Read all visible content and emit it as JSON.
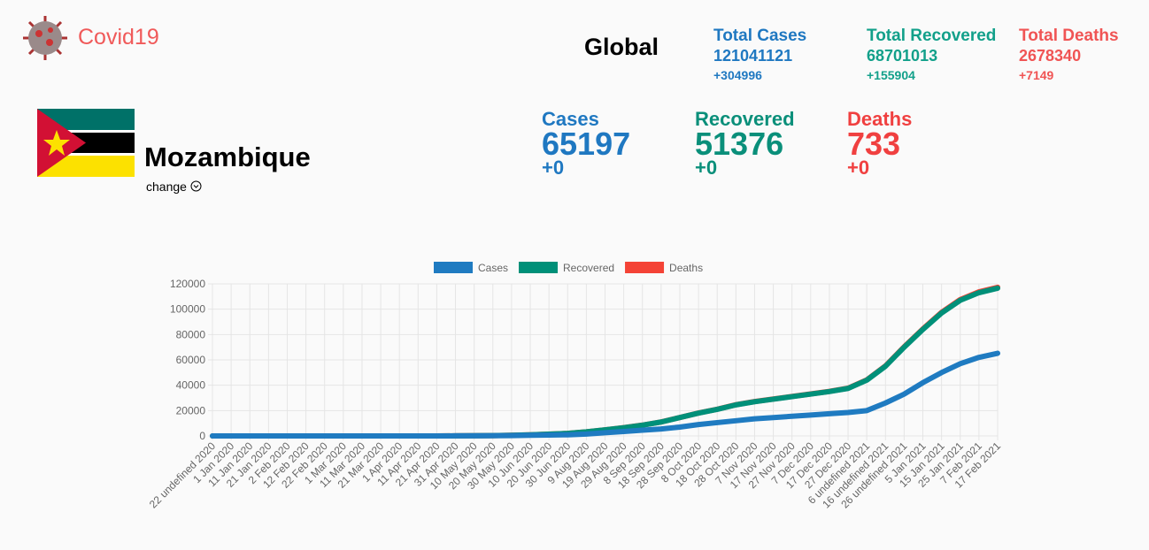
{
  "header": {
    "title": "Covid19"
  },
  "global": {
    "title": "Global",
    "stats": [
      {
        "label": "Total Cases",
        "value": "121041121",
        "delta": "+304996",
        "color": "#1f78c1"
      },
      {
        "label": "Total Recovered",
        "value": "68701013",
        "delta": "+155904",
        "color": "#12a08a"
      },
      {
        "label": "Total Deaths",
        "value": "2678340",
        "delta": "+7149",
        "color": "#f05454"
      }
    ]
  },
  "country": {
    "name": "Mozambique",
    "change": "change",
    "stats": [
      {
        "label": "Cases",
        "value": "65197",
        "delta": "+0",
        "color": "#1f78c1"
      },
      {
        "label": "Recovered",
        "value": "51376",
        "delta": "+0",
        "color": "#0a8f7a"
      },
      {
        "label": "Deaths",
        "value": "733",
        "delta": "+0",
        "color": "#f04040"
      }
    ]
  },
  "chart_data": {
    "type": "line",
    "stacked": true,
    "categories": [
      "22 undefined 2020",
      "1 Jan 2020",
      "11 Jan 2020",
      "21 Jan 2020",
      "2 Feb 2020",
      "12 Feb 2020",
      "22 Feb 2020",
      "1 Mar 2020",
      "11 Mar 2020",
      "21 Mar 2020",
      "1 Apr 2020",
      "11 Apr 2020",
      "21 Apr 2020",
      "31 Apr 2020",
      "10 May 2020",
      "20 May 2020",
      "30 May 2020",
      "10 Jun 2020",
      "20 Jun 2020",
      "30 Jun 2020",
      "9 Aug 2020",
      "19 Aug 2020",
      "29 Aug 2020",
      "8 Sep 2020",
      "18 Sep 2020",
      "28 Sep 2020",
      "8 Oct 2020",
      "18 Oct 2020",
      "28 Oct 2020",
      "7 Nov 2020",
      "17 Nov 2020",
      "27 Nov 2020",
      "7 Dec 2020",
      "17 Dec 2020",
      "27 Dec 2020",
      "6 undefined 2021",
      "16 undefined 2021",
      "26 undefined 2021",
      "5 Jan 2021",
      "15 Jan 2021",
      "25 Jan 2021",
      "7 Feb 2021",
      "17 Feb 2021"
    ],
    "series": [
      {
        "name": "Cases",
        "color": "#1f7bc1",
        "values": [
          0,
          0,
          0,
          0,
          0,
          0,
          0,
          0,
          0,
          0,
          0,
          0,
          0,
          50,
          100,
          150,
          250,
          500,
          700,
          900,
          1500,
          2500,
          3500,
          4500,
          5500,
          7000,
          9000,
          10500,
          12000,
          13500,
          14500,
          15500,
          16500,
          17500,
          18500,
          20000,
          26000,
          33000,
          42000,
          50000,
          57000,
          62000,
          65197
        ]
      },
      {
        "name": "Recovered",
        "color": "#009079",
        "values": [
          0,
          0,
          0,
          0,
          0,
          0,
          0,
          0,
          0,
          0,
          0,
          0,
          0,
          10,
          50,
          150,
          250,
          400,
          700,
          1100,
          1700,
          2300,
          3000,
          4000,
          5500,
          7500,
          9000,
          10500,
          12500,
          13500,
          14500,
          15500,
          16500,
          17500,
          19000,
          24000,
          29000,
          37000,
          42000,
          47000,
          50000,
          51000,
          51376
        ]
      },
      {
        "name": "Deaths",
        "color": "#f44336",
        "values": [
          0,
          0,
          0,
          0,
          0,
          0,
          0,
          0,
          0,
          0,
          0,
          0,
          0,
          0,
          0,
          1,
          2,
          4,
          6,
          8,
          10,
          16,
          22,
          30,
          40,
          50,
          70,
          90,
          110,
          120,
          130,
          140,
          150,
          160,
          180,
          200,
          260,
          330,
          400,
          500,
          600,
          700,
          733
        ]
      }
    ],
    "ylim": [
      0,
      120000
    ],
    "yticks": [
      0,
      20000,
      40000,
      60000,
      80000,
      100000,
      120000
    ],
    "grid": true,
    "legend": "top"
  }
}
